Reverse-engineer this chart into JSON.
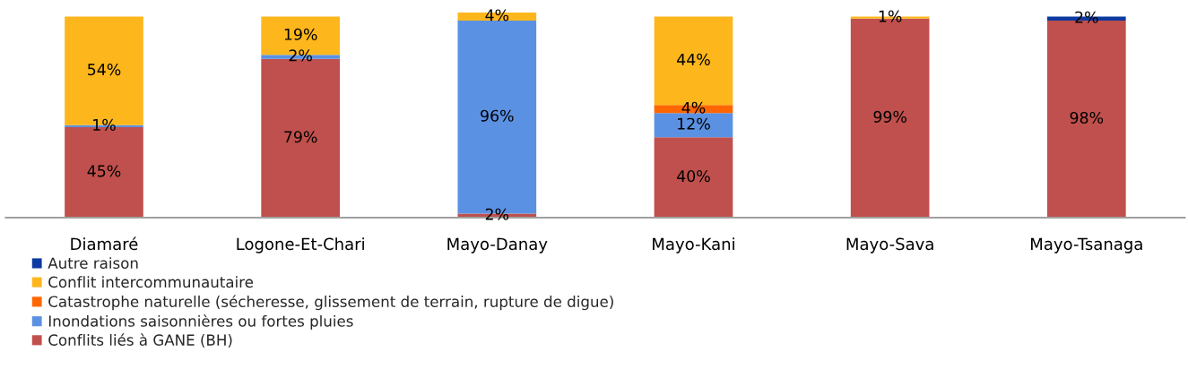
{
  "chart_data": {
    "type": "bar",
    "stacked": true,
    "categories": [
      "Diamaré",
      "Logone-Et-Chari",
      "Mayo-Danay",
      "Mayo-Kani",
      "Mayo-Sava",
      "Mayo-Tsanaga"
    ],
    "ylim": [
      0,
      102
    ],
    "tick_labels": "x",
    "legend": "bottom left",
    "series": [
      {
        "name": "Conflits liés à GANE (BH)",
        "color": "#c0504d",
        "values": [
          45,
          79,
          2,
          40,
          99,
          98
        ],
        "value_labels": [
          "45%",
          "79%",
          "2%",
          "40%",
          "99%",
          "98%"
        ]
      },
      {
        "name": "Inondations saisonnières ou fortes pluies",
        "color": "#5b91e2",
        "values": [
          1,
          2,
          96,
          12,
          null,
          null
        ],
        "value_labels": [
          "1%",
          "2%",
          "96%",
          "12%",
          null,
          null
        ]
      },
      {
        "name": "Catastrophe naturelle (sécheresse, glissement de terrain, rupture de digue)",
        "color": "#ff6600",
        "values": [
          null,
          null,
          null,
          4,
          null,
          null
        ],
        "value_labels": [
          null,
          null,
          null,
          "4%",
          null,
          null
        ]
      },
      {
        "name": "Conflit intercommunautaire",
        "color": "#fdb71c",
        "values": [
          54,
          19,
          4,
          44,
          1,
          null
        ],
        "value_labels": [
          "54%",
          "19%",
          "4%",
          "44%",
          "1%",
          null
        ]
      },
      {
        "name": "Autre raison",
        "color": "#0d3aa0",
        "values": [
          null,
          null,
          null,
          null,
          null,
          2
        ],
        "value_labels": [
          null,
          null,
          null,
          null,
          null,
          "2%"
        ]
      }
    ]
  }
}
